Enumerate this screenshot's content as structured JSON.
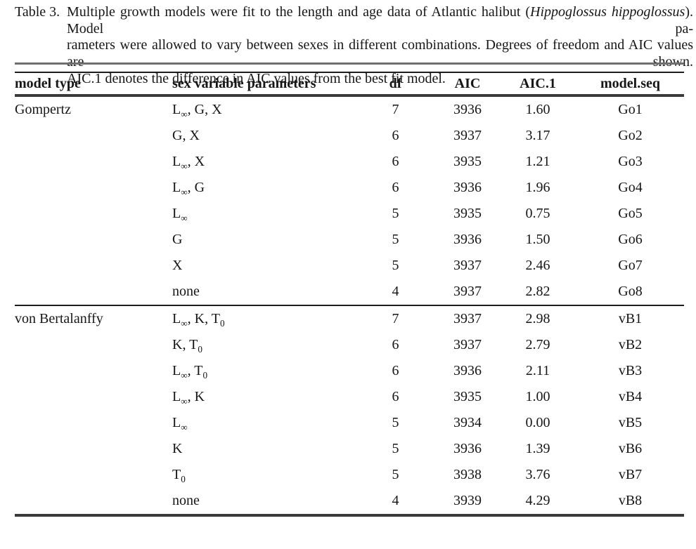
{
  "caption": {
    "label": "Table 3.",
    "lines": [
      [
        {
          "t": "Multiple growth models were fit to the length and age data of Atlantic halibut ("
        },
        {
          "t": "Hippoglossus hippoglossus",
          "i": true
        },
        {
          "t": "). Model pa-"
        }
      ],
      [
        {
          "t": "rameters were allowed to vary between sexes in different combinations. Degrees of freedom and AIC values are shown."
        }
      ],
      [
        {
          "t": "AIC.1 denotes the difference in AIC values from the best fit model."
        }
      ]
    ]
  },
  "colors": {
    "text": "#161616",
    "rule_gray": "#6f6f6f",
    "rule_black": "#1d1d1d",
    "rule_thick": "#3a3a3a"
  },
  "chart_data": {
    "type": "table",
    "title": "Table 3",
    "columns": [
      "model type",
      "sex variable parameters",
      "df",
      "AIC",
      "AIC.1",
      "model.seq"
    ],
    "sections": [
      {
        "model_type": "Gompertz",
        "rows": [
          {
            "params": "L_∞, G, X",
            "df": "7",
            "aic": "3936",
            "aic1": "1.60",
            "seq": "Go1"
          },
          {
            "params": "G, X",
            "df": "6",
            "aic": "3937",
            "aic1": "3.17",
            "seq": "Go2"
          },
          {
            "params": "L_∞, X",
            "df": "6",
            "aic": "3935",
            "aic1": "1.21",
            "seq": "Go3"
          },
          {
            "params": "L_∞, G",
            "df": "6",
            "aic": "3936",
            "aic1": "1.96",
            "seq": "Go4"
          },
          {
            "params": "L_∞",
            "df": "5",
            "aic": "3935",
            "aic1": "0.75",
            "seq": "Go5"
          },
          {
            "params": "G",
            "df": "5",
            "aic": "3936",
            "aic1": "1.50",
            "seq": "Go6"
          },
          {
            "params": "X",
            "df": "5",
            "aic": "3937",
            "aic1": "2.46",
            "seq": "Go7"
          },
          {
            "params": "none",
            "df": "4",
            "aic": "3937",
            "aic1": "2.82",
            "seq": "Go8"
          }
        ]
      },
      {
        "model_type": "von Bertalanffy",
        "rows": [
          {
            "params": "L_∞, K, T_0",
            "df": "7",
            "aic": "3937",
            "aic1": "2.98",
            "seq": "vB1"
          },
          {
            "params": "K, T_0",
            "df": "6",
            "aic": "3937",
            "aic1": "2.79",
            "seq": "vB2"
          },
          {
            "params": "L_∞, T_0",
            "df": "6",
            "aic": "3936",
            "aic1": "2.11",
            "seq": "vB3"
          },
          {
            "params": "L_∞, K",
            "df": "6",
            "aic": "3935",
            "aic1": "1.00",
            "seq": "vB4"
          },
          {
            "params": "L_∞",
            "df": "5",
            "aic": "3934",
            "aic1": "0.00",
            "seq": "vB5"
          },
          {
            "params": "K",
            "df": "5",
            "aic": "3936",
            "aic1": "1.39",
            "seq": "vB6"
          },
          {
            "params": "T_0",
            "df": "5",
            "aic": "3938",
            "aic1": "3.76",
            "seq": "vB7"
          },
          {
            "params": "none",
            "df": "4",
            "aic": "3939",
            "aic1": "4.29",
            "seq": "vB8"
          }
        ]
      }
    ]
  }
}
